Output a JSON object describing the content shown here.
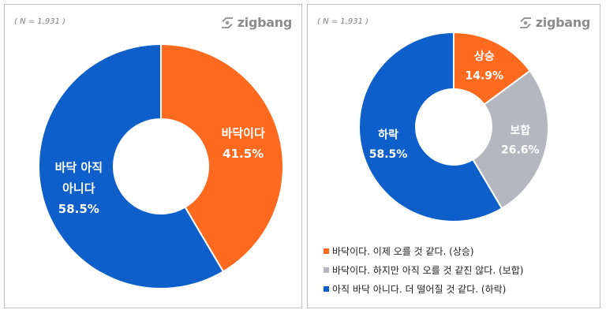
{
  "panels": {
    "left": {
      "n_label": "( N = 1,931 )",
      "logo_text": "zigbang"
    },
    "right": {
      "n_label": "( N = 1,931 )",
      "logo_text": "zigbang"
    }
  },
  "chart_data": [
    {
      "type": "pie",
      "donut": true,
      "slices": [
        {
          "label_lines": [
            "바닥이다"
          ],
          "value": 41.5,
          "value_label": "41.5%",
          "color": "#FF6A1F"
        },
        {
          "label_lines": [
            "바닥 아직",
            "아니다"
          ],
          "value": 58.5,
          "value_label": "58.5%",
          "color": "#0F5FCB"
        }
      ]
    },
    {
      "type": "pie",
      "donut": true,
      "slices": [
        {
          "label_lines": [
            "상승"
          ],
          "value": 14.9,
          "value_label": "14.9%",
          "color": "#FF6A1F"
        },
        {
          "label_lines": [
            "보합"
          ],
          "value": 26.6,
          "value_label": "26.6%",
          "color": "#B4B7BD"
        },
        {
          "label_lines": [
            "하락"
          ],
          "value": 58.5,
          "value_label": "58.5%",
          "color": "#0F5FCB"
        }
      ],
      "legend": [
        {
          "text": "바닥이다. 이제 오를 것 같다. (상승)",
          "color": "#FF6A1F"
        },
        {
          "text": "바닥이다. 하지만 아직 오를 것 같진 않다. (보합)",
          "color": "#B4B7BD"
        },
        {
          "text": "아직 바닥 아니다. 더 떨어질 것 같다. (하락)",
          "color": "#0F5FCB"
        }
      ]
    }
  ]
}
